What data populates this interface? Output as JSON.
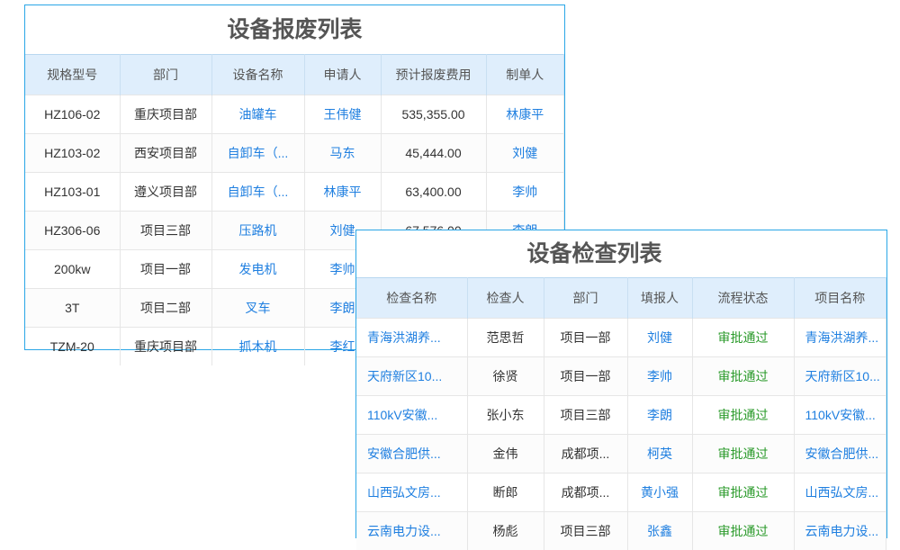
{
  "scrap": {
    "title": "设备报废列表",
    "columns": [
      "规格型号",
      "部门",
      "设备名称",
      "申请人",
      "预计报废费用",
      "制单人"
    ],
    "rows": [
      [
        "HZ106-02",
        "重庆项目部",
        "油罐车",
        "王伟健",
        "535,355.00",
        "林康平"
      ],
      [
        "HZ103-02",
        "西安项目部",
        "自卸车（...",
        "马东",
        "45,444.00",
        "刘健"
      ],
      [
        "HZ103-01",
        "遵义项目部",
        "自卸车（...",
        "林康平",
        "63,400.00",
        "李帅"
      ],
      [
        "HZ306-06",
        "项目三部",
        "压路机",
        "刘健",
        "67,576.00",
        "李朗"
      ],
      [
        "200kw",
        "项目一部",
        "发电机",
        "李帅",
        "",
        ""
      ],
      [
        "3T",
        "项目二部",
        "叉车",
        "李朗",
        "",
        ""
      ],
      [
        "TZM-20",
        "重庆项目部",
        "抓木机",
        "李红",
        "",
        ""
      ]
    ]
  },
  "inspect": {
    "title": "设备检查列表",
    "columns": [
      "检查名称",
      "检查人",
      "部门",
      "填报人",
      "流程状态",
      "项目名称"
    ],
    "rows": [
      [
        "青海洪湖养...",
        "范思哲",
        "项目一部",
        "刘健",
        "审批通过",
        "青海洪湖养..."
      ],
      [
        "天府新区10...",
        "徐贤",
        "项目一部",
        "李帅",
        "审批通过",
        "天府新区10..."
      ],
      [
        "110kV安徽...",
        "张小东",
        "项目三部",
        "李朗",
        "审批通过",
        "110kV安徽..."
      ],
      [
        "安徽合肥供...",
        "金伟",
        "成都项...",
        "柯英",
        "审批通过",
        "安徽合肥供..."
      ],
      [
        "山西弘文房...",
        "断郎",
        "成都项...",
        "黄小强",
        "审批通过",
        "山西弘文房..."
      ],
      [
        "云南电力设...",
        "杨彪",
        "项目三部",
        "张鑫",
        "审批通过",
        "云南电力设..."
      ]
    ]
  },
  "colors": {
    "border": "#2aa6e6",
    "header_bg": "#dfeefc",
    "link": "#1f7fe0",
    "status_ok": "#2a9a2a"
  }
}
